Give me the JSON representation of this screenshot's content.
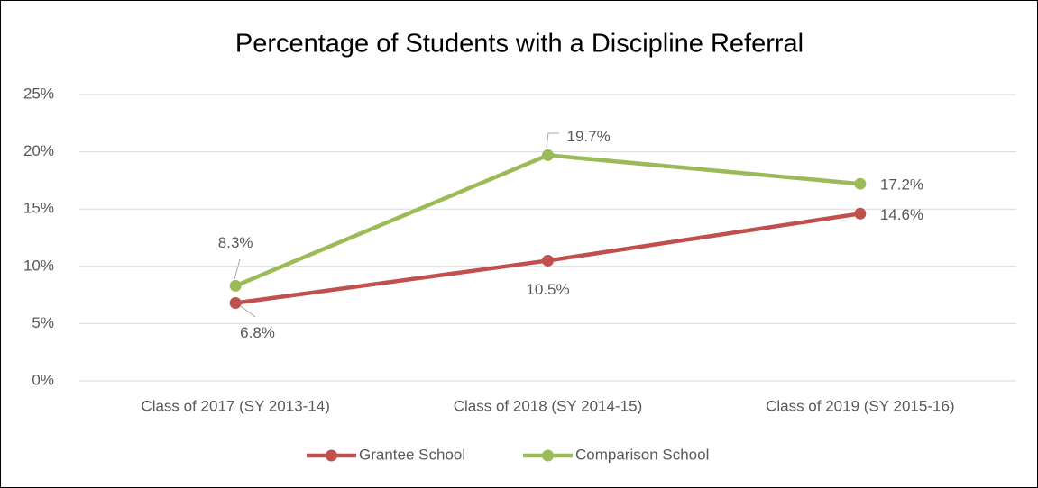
{
  "chart_data": {
    "type": "line",
    "title": "Percentage of Students with a Discipline Referral",
    "categories": [
      "Class of 2017 (SY 2013-14)",
      "Class of 2018 (SY 2014-15)",
      "Class of 2019 (SY 2015-16)"
    ],
    "series": [
      {
        "name": "Grantee School",
        "color": "#c0504d",
        "values": [
          6.8,
          10.5,
          14.6
        ],
        "value_labels": [
          "6.8%",
          "10.5%",
          "14.6%"
        ]
      },
      {
        "name": "Comparison School",
        "color": "#9bbb59",
        "values": [
          8.3,
          19.7,
          17.2
        ],
        "value_labels": [
          "8.3%",
          "19.7%",
          "17.2%"
        ]
      }
    ],
    "ylim": [
      0,
      25
    ],
    "yticks": [
      {
        "value": 0,
        "label": "0%"
      },
      {
        "value": 5,
        "label": "5%"
      },
      {
        "value": 10,
        "label": "10%"
      },
      {
        "value": 15,
        "label": "15%"
      },
      {
        "value": 20,
        "label": "20%"
      },
      {
        "value": 25,
        "label": "25%"
      }
    ],
    "grid": true,
    "legend": "bottom"
  }
}
